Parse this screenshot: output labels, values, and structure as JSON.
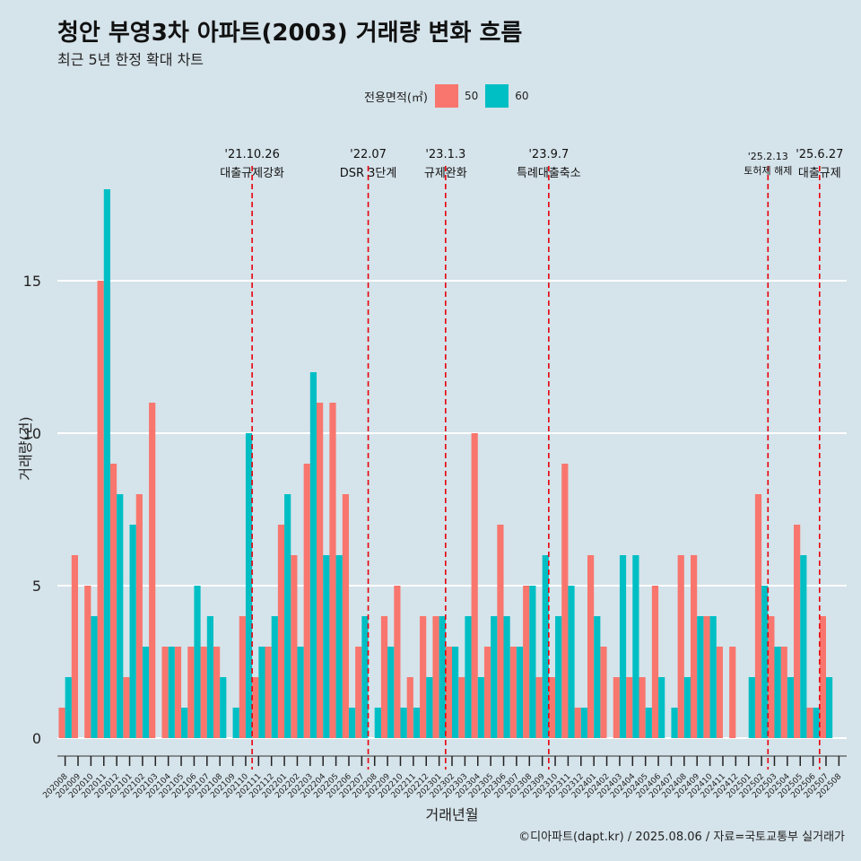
{
  "title": "청안 부영3차 아파트(2003) 거래량 변화 흐름",
  "subtitle": "최근 5년 한정 확대 차트",
  "legend": {
    "title": "전용면적(㎡)",
    "items": [
      {
        "label": "50",
        "color": "#f8766d"
      },
      {
        "label": "60",
        "color": "#00bfc4"
      }
    ]
  },
  "caption": "©디아파트(dapt.kr) / 2025.08.06 / 자료=국토교통부 실거래가",
  "chart_data": {
    "type": "bar",
    "xlabel": "거래년월",
    "ylabel": "거래량(건)",
    "ylim": [
      0,
      18
    ],
    "yticks": [
      0,
      5,
      10,
      15
    ],
    "grid": true,
    "legend_position": "top",
    "categories": [
      "202008",
      "202009",
      "202010",
      "202011",
      "202012",
      "202101",
      "202102",
      "202103",
      "202104",
      "202105",
      "202106",
      "202107",
      "202108",
      "202109",
      "202110",
      "202111",
      "202112",
      "202201",
      "202202",
      "202203",
      "202204",
      "202205",
      "202206",
      "202207",
      "202208",
      "202209",
      "202210",
      "202211",
      "202212",
      "202301",
      "202302",
      "202303",
      "202304",
      "202305",
      "202306",
      "202307",
      "202308",
      "202309",
      "202310",
      "202311",
      "202312",
      "202401",
      "202402",
      "202403",
      "202404",
      "202405",
      "202406",
      "202407",
      "202408",
      "202409",
      "202410",
      "202411",
      "202412",
      "202501",
      "202502",
      "202503",
      "202504",
      "202505",
      "202506",
      "202507",
      "202508"
    ],
    "series": [
      {
        "name": "50",
        "color": "#f8766d",
        "values": [
          1,
          6,
          5,
          15,
          9,
          2,
          8,
          11,
          3,
          3,
          3,
          3,
          3,
          0,
          4,
          2,
          3,
          7,
          6,
          9,
          11,
          11,
          8,
          3,
          0,
          4,
          5,
          2,
          4,
          4,
          3,
          2,
          10,
          3,
          7,
          3,
          5,
          2,
          2,
          9,
          1,
          6,
          3,
          2,
          2,
          2,
          5,
          0,
          6,
          6,
          4,
          3,
          3,
          0,
          8,
          4,
          3,
          7,
          1,
          4,
          0
        ]
      },
      {
        "name": "60",
        "color": "#00bfc4",
        "values": [
          2,
          0,
          4,
          18,
          8,
          7,
          3,
          0,
          3,
          1,
          5,
          4,
          2,
          1,
          10,
          3,
          4,
          8,
          3,
          12,
          6,
          6,
          1,
          4,
          1,
          3,
          1,
          1,
          2,
          4,
          3,
          4,
          2,
          4,
          4,
          3,
          5,
          6,
          4,
          5,
          1,
          4,
          0,
          6,
          6,
          1,
          2,
          1,
          2,
          4,
          4,
          0,
          0,
          2,
          5,
          3,
          2,
          6,
          1,
          2,
          0
        ]
      }
    ],
    "annotations": [
      {
        "after": "202110",
        "date": "'21.10.26",
        "label": "대출규제강화",
        "small": false
      },
      {
        "after": "202207",
        "date": "'22.07",
        "label": "DSR 3단계",
        "small": false
      },
      {
        "after": "202301",
        "date": "'23.1.3",
        "label": "규제완화",
        "small": false
      },
      {
        "after": "202309",
        "date": "'23.9.7",
        "label": "특례대출축소",
        "small": false
      },
      {
        "after": "202502",
        "date": "'25.2.13",
        "label": "토허제 해제",
        "small": true
      },
      {
        "after": "202506",
        "date": "'25.6.27",
        "label": "대출규제",
        "small": false
      }
    ]
  }
}
